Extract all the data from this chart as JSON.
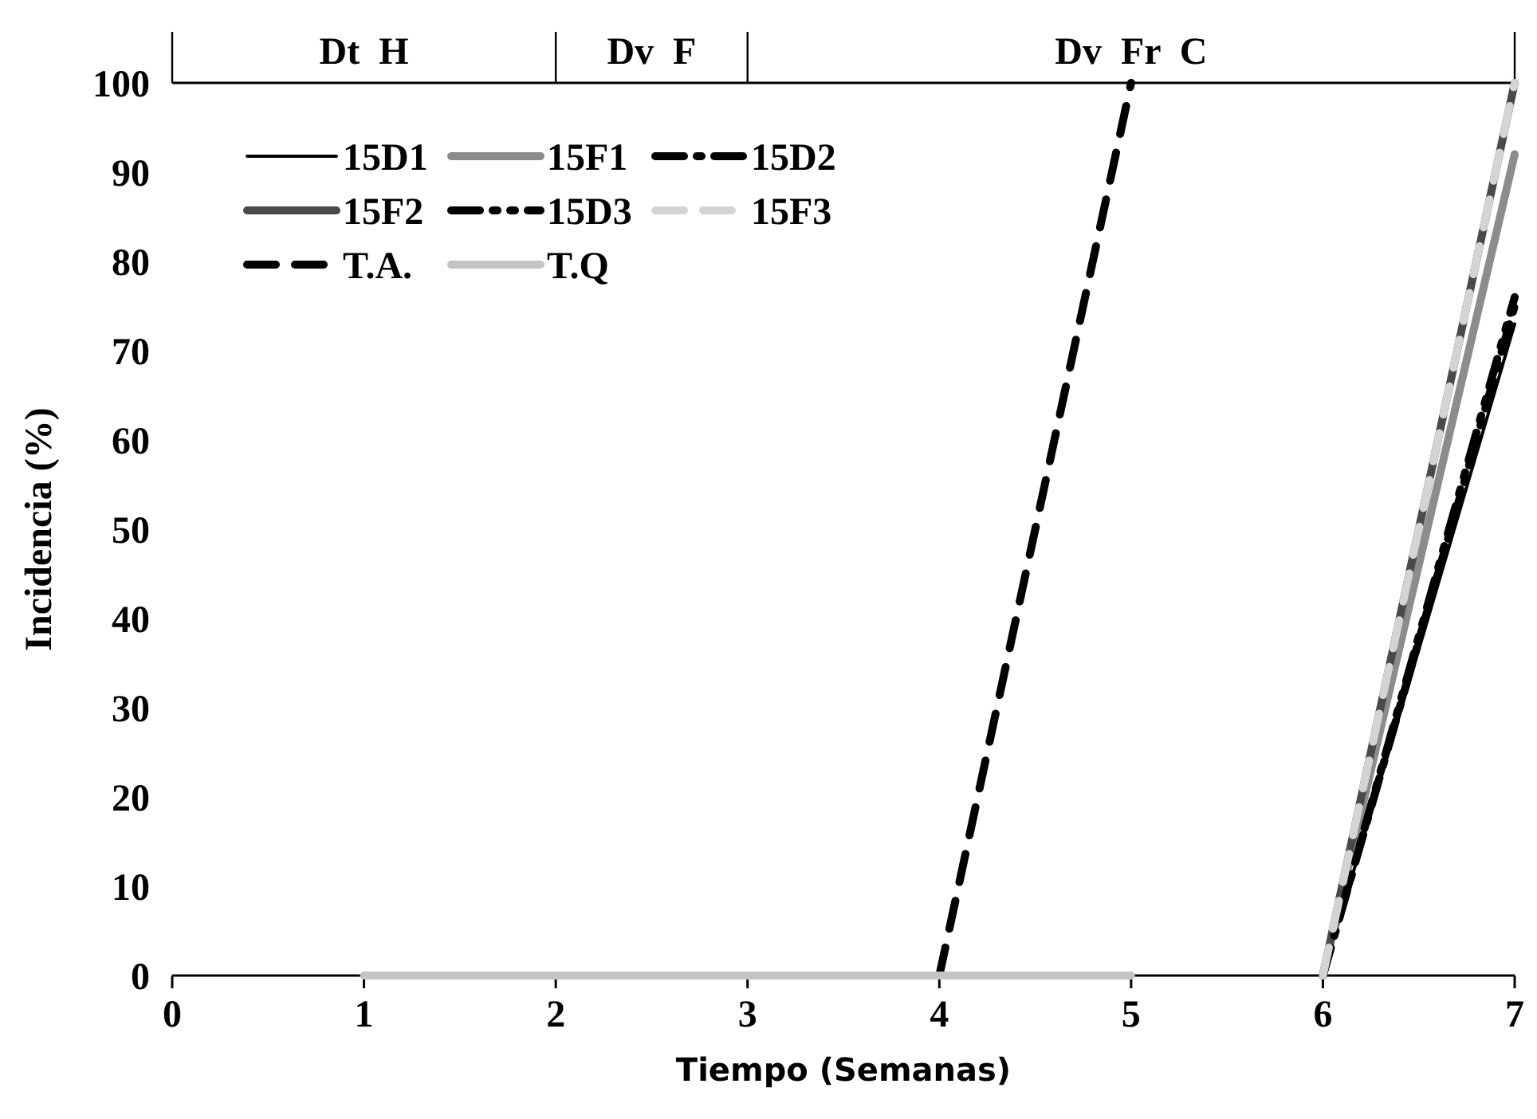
{
  "chart_data": {
    "type": "line",
    "xlabel": "Tiempo (Semanas)",
    "ylabel": "Incidencia (%)",
    "xlim": [
      0,
      7
    ],
    "xticks": [
      0,
      1,
      2,
      3,
      4,
      5,
      6,
      7
    ],
    "ylim": [
      0,
      100
    ],
    "yticks": [
      0,
      10,
      20,
      30,
      40,
      50,
      60,
      70,
      80,
      90,
      100
    ],
    "grid": false,
    "legend": "top left",
    "marker": "none",
    "annotations": [
      "Dt  H",
      "Dv  F",
      "Dv  Fr  C"
    ],
    "series": [
      {
        "name": "15D1",
        "color": "#000000",
        "line_style": "solid",
        "x": [
          6,
          7
        ],
        "values": [
          0,
          73
        ]
      },
      {
        "name": "15F1",
        "color": "#8c8c8c",
        "line_style": "solid",
        "x": [
          6,
          7
        ],
        "values": [
          0,
          92
        ]
      },
      {
        "name": "15D2",
        "color": "#000000",
        "line_style": "dashdot",
        "x": [
          6,
          7
        ],
        "values": [
          0,
          75
        ]
      },
      {
        "name": "15F2",
        "color": "#4a4a4a",
        "line_style": "solid",
        "x": [
          6,
          7
        ],
        "values": [
          0,
          100
        ]
      },
      {
        "name": "15D3",
        "color": "#000000",
        "line_style": "dashdotdot",
        "x": [
          6,
          7
        ],
        "values": [
          0,
          76
        ]
      },
      {
        "name": "15F3",
        "color": "#d4d4d4",
        "line_style": "dashed",
        "x": [
          6,
          7
        ],
        "values": [
          0,
          100
        ]
      },
      {
        "name": "T.A.",
        "color": "#000000",
        "line_style": "dashed",
        "x": [
          4,
          5
        ],
        "values": [
          0,
          100
        ]
      },
      {
        "name": "T.Q",
        "color": "#c4c4c4",
        "line_style": "solid",
        "x": [
          1,
          2,
          3,
          4,
          5
        ],
        "values": [
          0,
          0,
          0,
          0,
          0
        ]
      }
    ]
  }
}
